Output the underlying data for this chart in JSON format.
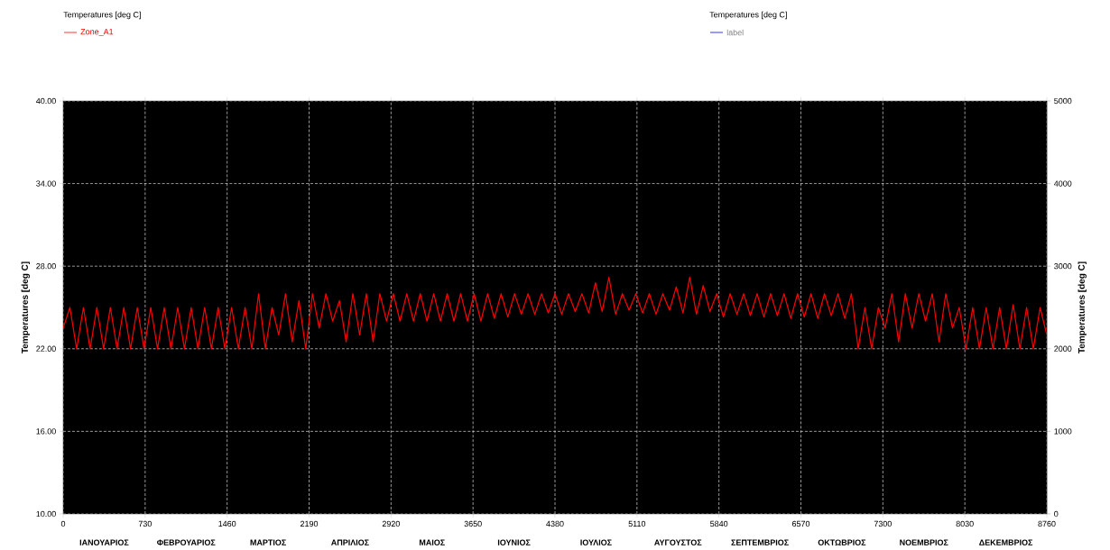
{
  "chart_data": {
    "type": "line",
    "legend": "top",
    "legend_title": "Temperatures  [deg C]",
    "grid": true,
    "line_style": "solid",
    "marker": "none",
    "ylabel": "Temperatures  [deg C]",
    "y2label": "Temperatures  [deg C]",
    "annotations": [
      "Temperatures  [deg C]",
      "ΙΑΝΟΥΑΡΙΟΣ",
      "ΦΕΒΡΟΥΑΡΙΟΣ",
      "ΜΑΡΤΙΟΣ",
      "ΑΠΡΙΛΙΟΣ",
      "ΜΑΙΟΣ",
      "ΙΟΥΝΙΟΣ",
      "ΙΟΥΛΙΟΣ",
      "ΑΥΓΟΥΣΤΟΣ",
      "ΣΕΠΤΕΜΒΡΙΟΣ",
      "ΟΚΤΩΒΡΙΟΣ",
      "ΝΟΕΜΒΡΙΟΣ",
      "ΔΕΚΕΜΒΡΙΟΣ"
    ],
    "xlim": [
      0,
      8760
    ],
    "xticks": [
      0,
      730,
      1460,
      2190,
      2920,
      3650,
      4380,
      5110,
      5840,
      6570,
      7300,
      8030,
      8760
    ],
    "ylim": [
      10,
      40
    ],
    "yticks": [
      {
        "value": 10,
        "label": "10.00"
      },
      {
        "value": 16,
        "label": "16.00"
      },
      {
        "value": 22,
        "label": "22.00"
      },
      {
        "value": 28,
        "label": "28.00"
      },
      {
        "value": 34,
        "label": "34.00"
      },
      {
        "value": 40,
        "label": "40.00"
      }
    ],
    "y2lim": [
      0,
      5000
    ],
    "y2ticks": [
      0,
      1000,
      2000,
      3000,
      4000,
      5000
    ],
    "x": [
      0,
      60,
      120,
      180,
      240,
      300,
      360,
      420,
      480,
      540,
      600,
      660,
      720,
      780,
      840,
      900,
      960,
      1020,
      1080,
      1140,
      1200,
      1260,
      1320,
      1380,
      1440,
      1500,
      1560,
      1620,
      1680,
      1740,
      1800,
      1860,
      1920,
      1980,
      2040,
      2100,
      2160,
      2220,
      2280,
      2340,
      2400,
      2460,
      2520,
      2580,
      2640,
      2700,
      2760,
      2820,
      2880,
      2940,
      3000,
      3060,
      3120,
      3180,
      3240,
      3300,
      3360,
      3420,
      3480,
      3540,
      3600,
      3660,
      3720,
      3780,
      3840,
      3900,
      3960,
      4020,
      4080,
      4140,
      4200,
      4260,
      4320,
      4380,
      4440,
      4500,
      4560,
      4620,
      4680,
      4740,
      4800,
      4860,
      4920,
      4980,
      5040,
      5100,
      5160,
      5220,
      5280,
      5340,
      5400,
      5460,
      5520,
      5580,
      5640,
      5700,
      5760,
      5820,
      5880,
      5940,
      6000,
      6060,
      6120,
      6180,
      6240,
      6300,
      6360,
      6420,
      6480,
      6540,
      6600,
      6660,
      6720,
      6780,
      6840,
      6900,
      6960,
      7020,
      7080,
      7140,
      7200,
      7260,
      7320,
      7380,
      7440,
      7500,
      7560,
      7620,
      7680,
      7740,
      7800,
      7860,
      7920,
      7980,
      8040,
      8100,
      8160,
      8220,
      8280,
      8340,
      8400,
      8460,
      8520,
      8580,
      8640,
      8700,
      8760
    ],
    "series": [
      {
        "name": "Zone_A1",
        "color": "#ff0000",
        "values": [
          23.5,
          25,
          22,
          25,
          22,
          25,
          22,
          25,
          22,
          25,
          22,
          25,
          22,
          25,
          22,
          25,
          22,
          25,
          22,
          25,
          22,
          25,
          22,
          25,
          22,
          25,
          22,
          25,
          22,
          26,
          22,
          25,
          23,
          26,
          22.5,
          25.5,
          22,
          26,
          23.5,
          26,
          24,
          25.5,
          22.5,
          26,
          23,
          26,
          22.5,
          26,
          24,
          26,
          24,
          26,
          24,
          26,
          24,
          26,
          24,
          26,
          24,
          26,
          24,
          26,
          24,
          26,
          24.2,
          26,
          24.3,
          26,
          24.5,
          26,
          24.5,
          26,
          24.6,
          26,
          24.5,
          26,
          24.7,
          26,
          24.6,
          26.8,
          24.7,
          27.2,
          24.5,
          26,
          24.8,
          26,
          24.6,
          26,
          24.5,
          26,
          24.8,
          26.5,
          24.6,
          27.2,
          24.5,
          26.6,
          24.7,
          26,
          24.3,
          26,
          24.5,
          26,
          24.4,
          26,
          24.3,
          26,
          24.4,
          26,
          24.2,
          26,
          24.3,
          26,
          24.2,
          26,
          24.4,
          26,
          24.2,
          26,
          22,
          25,
          22,
          25,
          23.5,
          26,
          22.5,
          26,
          23.5,
          26,
          24,
          26,
          22.5,
          26,
          23.5,
          25,
          22,
          25,
          22,
          25,
          22,
          25,
          22,
          25.2,
          22,
          25,
          22,
          25,
          23
        ]
      },
      {
        "name": "label",
        "color": "#0000ff",
        "values": [
          null,
          null,
          null,
          null,
          null,
          null,
          null,
          null,
          null,
          null,
          null,
          null,
          null,
          null,
          null,
          null,
          null,
          null,
          null,
          null,
          null,
          null,
          null,
          null,
          null,
          null,
          null,
          null,
          null,
          null,
          null,
          null,
          null,
          null,
          null,
          null,
          null,
          null,
          null,
          null,
          null,
          null,
          null,
          null,
          null,
          null,
          null,
          null,
          null,
          null,
          null,
          null,
          null,
          null,
          null,
          null,
          null,
          null,
          null,
          null,
          null,
          null,
          null,
          null,
          null,
          null,
          null,
          null,
          null,
          null,
          null,
          null,
          null,
          null,
          null,
          null,
          null,
          null,
          null,
          null,
          null,
          null,
          null,
          null,
          null,
          null,
          null,
          null,
          null,
          null,
          null,
          null,
          null,
          null,
          null,
          null,
          null,
          null,
          null,
          null,
          null,
          null,
          null,
          null,
          null,
          null,
          null,
          null,
          null,
          null,
          null,
          null,
          null,
          null,
          null,
          null,
          null,
          null,
          null,
          null,
          null,
          null,
          null,
          null,
          null,
          null,
          null,
          null,
          null,
          null,
          null,
          null,
          null,
          null,
          null,
          null,
          null,
          null,
          null,
          null,
          null,
          null,
          null,
          null,
          null,
          null,
          null
        ]
      }
    ]
  }
}
